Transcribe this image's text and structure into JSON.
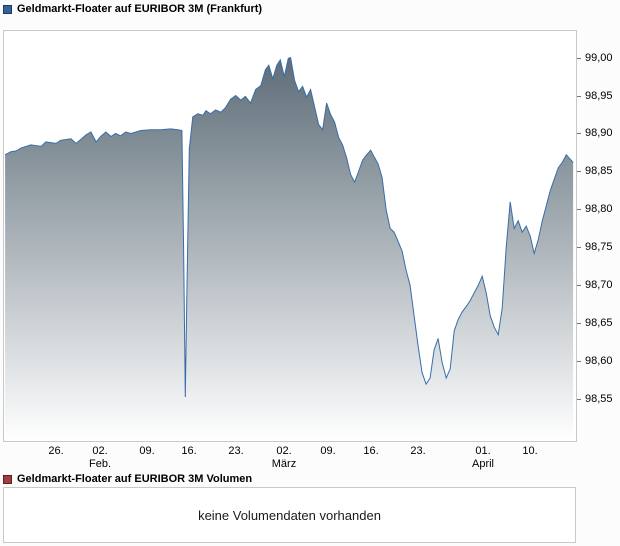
{
  "price_panel": {
    "title": "Geldmarkt-Floater auf EURIBOR 3M (Frankfurt)"
  },
  "volume_panel": {
    "title": "Geldmarkt-Floater auf EURIBOR 3M Volumen",
    "message": "keine Volumendaten vorhanden"
  },
  "colors": {
    "line": "#3a6da7",
    "fill_top": "#52636f",
    "fill_bottom": "#ffffff",
    "legend_price": "#31639c",
    "legend_volume": "#a43d3d",
    "plot_border": "#c9c9c9"
  },
  "chart_data": {
    "type": "area",
    "title": "Geldmarkt-Floater auf EURIBOR 3M (Frankfurt)",
    "xlabel": "",
    "ylabel": "",
    "ylim": [
      98.495,
      99.035
    ],
    "grid": false,
    "legend_position": "none",
    "line_color": "#3a6da7",
    "fill_top": "#52636f",
    "fill_bottom": "#ffffff",
    "y_ticks": [
      {
        "v": 99.0,
        "label": "99,00"
      },
      {
        "v": 98.95,
        "label": "98,95"
      },
      {
        "v": 98.9,
        "label": "98,90"
      },
      {
        "v": 98.85,
        "label": "98,85"
      },
      {
        "v": 98.8,
        "label": "98,80"
      },
      {
        "v": 98.75,
        "label": "98,75"
      },
      {
        "v": 98.7,
        "label": "98,70"
      },
      {
        "v": 98.65,
        "label": "98,65"
      },
      {
        "v": 98.6,
        "label": "98,60"
      },
      {
        "v": 98.55,
        "label": "98,55"
      }
    ],
    "x_ticks": [
      {
        "pos": 0.091,
        "label": "26."
      },
      {
        "pos": 0.168,
        "label": "02.",
        "month": "Feb."
      },
      {
        "pos": 0.25,
        "label": "09."
      },
      {
        "pos": 0.323,
        "label": "16."
      },
      {
        "pos": 0.405,
        "label": "23."
      },
      {
        "pos": 0.489,
        "label": "02.",
        "month": "März"
      },
      {
        "pos": 0.567,
        "label": "09."
      },
      {
        "pos": 0.642,
        "label": "16."
      },
      {
        "pos": 0.724,
        "label": "23."
      },
      {
        "pos": 0.838,
        "label": "01.",
        "month": "April"
      },
      {
        "pos": 0.92,
        "label": "10."
      }
    ],
    "points": [
      [
        0.002,
        98.872
      ],
      [
        0.012,
        98.876
      ],
      [
        0.021,
        98.877
      ],
      [
        0.03,
        98.881
      ],
      [
        0.047,
        98.885
      ],
      [
        0.065,
        98.883
      ],
      [
        0.073,
        98.889
      ],
      [
        0.091,
        98.887
      ],
      [
        0.099,
        98.891
      ],
      [
        0.117,
        98.893
      ],
      [
        0.126,
        98.887
      ],
      [
        0.134,
        98.892
      ],
      [
        0.143,
        98.898
      ],
      [
        0.152,
        98.902
      ],
      [
        0.161,
        98.889
      ],
      [
        0.169,
        98.896
      ],
      [
        0.178,
        98.902
      ],
      [
        0.187,
        98.896
      ],
      [
        0.195,
        98.9
      ],
      [
        0.204,
        98.897
      ],
      [
        0.213,
        98.902
      ],
      [
        0.222,
        98.9
      ],
      [
        0.239,
        98.904
      ],
      [
        0.257,
        98.905
      ],
      [
        0.274,
        98.905
      ],
      [
        0.291,
        98.906
      ],
      [
        0.304,
        98.905
      ],
      [
        0.311,
        98.904
      ],
      [
        0.314,
        98.75
      ],
      [
        0.317,
        98.553
      ],
      [
        0.32,
        98.7
      ],
      [
        0.324,
        98.88
      ],
      [
        0.33,
        98.922
      ],
      [
        0.339,
        98.926
      ],
      [
        0.348,
        98.924
      ],
      [
        0.353,
        98.93
      ],
      [
        0.361,
        98.926
      ],
      [
        0.37,
        98.931
      ],
      [
        0.379,
        98.928
      ],
      [
        0.387,
        98.934
      ],
      [
        0.396,
        98.945
      ],
      [
        0.405,
        98.95
      ],
      [
        0.414,
        98.944
      ],
      [
        0.422,
        98.949
      ],
      [
        0.431,
        98.94
      ],
      [
        0.44,
        98.958
      ],
      [
        0.449,
        98.963
      ],
      [
        0.457,
        98.984
      ],
      [
        0.463,
        98.99
      ],
      [
        0.47,
        98.972
      ],
      [
        0.477,
        98.99
      ],
      [
        0.483,
        98.997
      ],
      [
        0.49,
        98.975
      ],
      [
        0.497,
        98.999
      ],
      [
        0.501,
        99.0
      ],
      [
        0.508,
        98.97
      ],
      [
        0.515,
        98.955
      ],
      [
        0.522,
        98.962
      ],
      [
        0.529,
        98.948
      ],
      [
        0.536,
        98.958
      ],
      [
        0.543,
        98.935
      ],
      [
        0.55,
        98.912
      ],
      [
        0.557,
        98.905
      ],
      [
        0.564,
        98.94
      ],
      [
        0.571,
        98.925
      ],
      [
        0.578,
        98.915
      ],
      [
        0.585,
        98.895
      ],
      [
        0.592,
        98.885
      ],
      [
        0.599,
        98.868
      ],
      [
        0.606,
        98.846
      ],
      [
        0.613,
        98.836
      ],
      [
        0.62,
        98.85
      ],
      [
        0.627,
        98.865
      ],
      [
        0.634,
        98.872
      ],
      [
        0.641,
        98.878
      ],
      [
        0.648,
        98.868
      ],
      [
        0.654,
        98.86
      ],
      [
        0.661,
        98.842
      ],
      [
        0.668,
        98.8
      ],
      [
        0.675,
        98.775
      ],
      [
        0.682,
        98.77
      ],
      [
        0.689,
        98.758
      ],
      [
        0.696,
        98.745
      ],
      [
        0.703,
        98.72
      ],
      [
        0.71,
        98.7
      ],
      [
        0.717,
        98.66
      ],
      [
        0.724,
        98.62
      ],
      [
        0.731,
        98.585
      ],
      [
        0.738,
        98.57
      ],
      [
        0.745,
        98.578
      ],
      [
        0.752,
        98.615
      ],
      [
        0.759,
        98.63
      ],
      [
        0.766,
        98.598
      ],
      [
        0.773,
        98.578
      ],
      [
        0.78,
        98.59
      ],
      [
        0.787,
        98.64
      ],
      [
        0.794,
        98.655
      ],
      [
        0.801,
        98.665
      ],
      [
        0.808,
        98.672
      ],
      [
        0.815,
        98.68
      ],
      [
        0.822,
        98.69
      ],
      [
        0.829,
        98.7
      ],
      [
        0.836,
        98.712
      ],
      [
        0.843,
        98.69
      ],
      [
        0.85,
        98.66
      ],
      [
        0.857,
        98.645
      ],
      [
        0.864,
        98.635
      ],
      [
        0.871,
        98.67
      ],
      [
        0.878,
        98.75
      ],
      [
        0.885,
        98.81
      ],
      [
        0.892,
        98.775
      ],
      [
        0.899,
        98.785
      ],
      [
        0.906,
        98.77
      ],
      [
        0.913,
        98.778
      ],
      [
        0.92,
        98.765
      ],
      [
        0.927,
        98.742
      ],
      [
        0.934,
        98.76
      ],
      [
        0.941,
        98.785
      ],
      [
        0.948,
        98.805
      ],
      [
        0.955,
        98.825
      ],
      [
        0.962,
        98.84
      ],
      [
        0.969,
        98.855
      ],
      [
        0.976,
        98.862
      ],
      [
        0.983,
        98.872
      ],
      [
        0.99,
        98.866
      ],
      [
        0.995,
        98.862
      ]
    ]
  }
}
